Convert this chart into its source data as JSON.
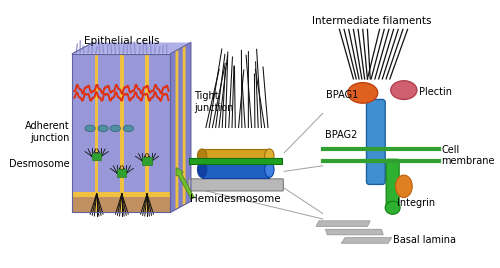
{
  "bg_color": "#ffffff",
  "fig_width": 5.0,
  "fig_height": 2.68,
  "dpi": 100,
  "labels": {
    "epithelial_cells": "Epithelial cells",
    "tight_junction": "Tight\njunction",
    "adherent_junction": "Adherent\njunction",
    "desmosome": "Desmosome",
    "hemidesmosome": "Hemidesmosome",
    "intermediate_filaments": "Intermediate filaments",
    "bpag1": "BPAG1",
    "bpag2": "BPAG2",
    "plectin": "Plectin",
    "cell_membrane": "Cell\nmembrane",
    "integrin": "Integrin",
    "basal_lamina": "Basal lamina"
  },
  "colors": {
    "cell_body": "#9898d8",
    "cell_top": "#b0b0e8",
    "cell_right": "#8080c8",
    "yellow_stripe": "#f0c040",
    "brown_base": "#c09060",
    "tight_junction_red": "#e03010",
    "adherent_teal": "#5090a0",
    "desmosome_green": "#30a030",
    "filament_color": "#101010",
    "arrow_green": "#70c030",
    "cylinder_gold": "#d4a020",
    "cylinder_blue": "#2060c0",
    "cylinder_green": "#20a020",
    "basal_gray": "#b0b0b0",
    "bpag1_orange": "#e06020",
    "plectin_pink": "#d06070",
    "bpag2_blue": "#4090d0",
    "integrin_green": "#30b030",
    "integrin_orange": "#e08020",
    "line_gray": "#909090",
    "membrane_green": "#30a030",
    "cilia_blue": "#9090d0"
  }
}
